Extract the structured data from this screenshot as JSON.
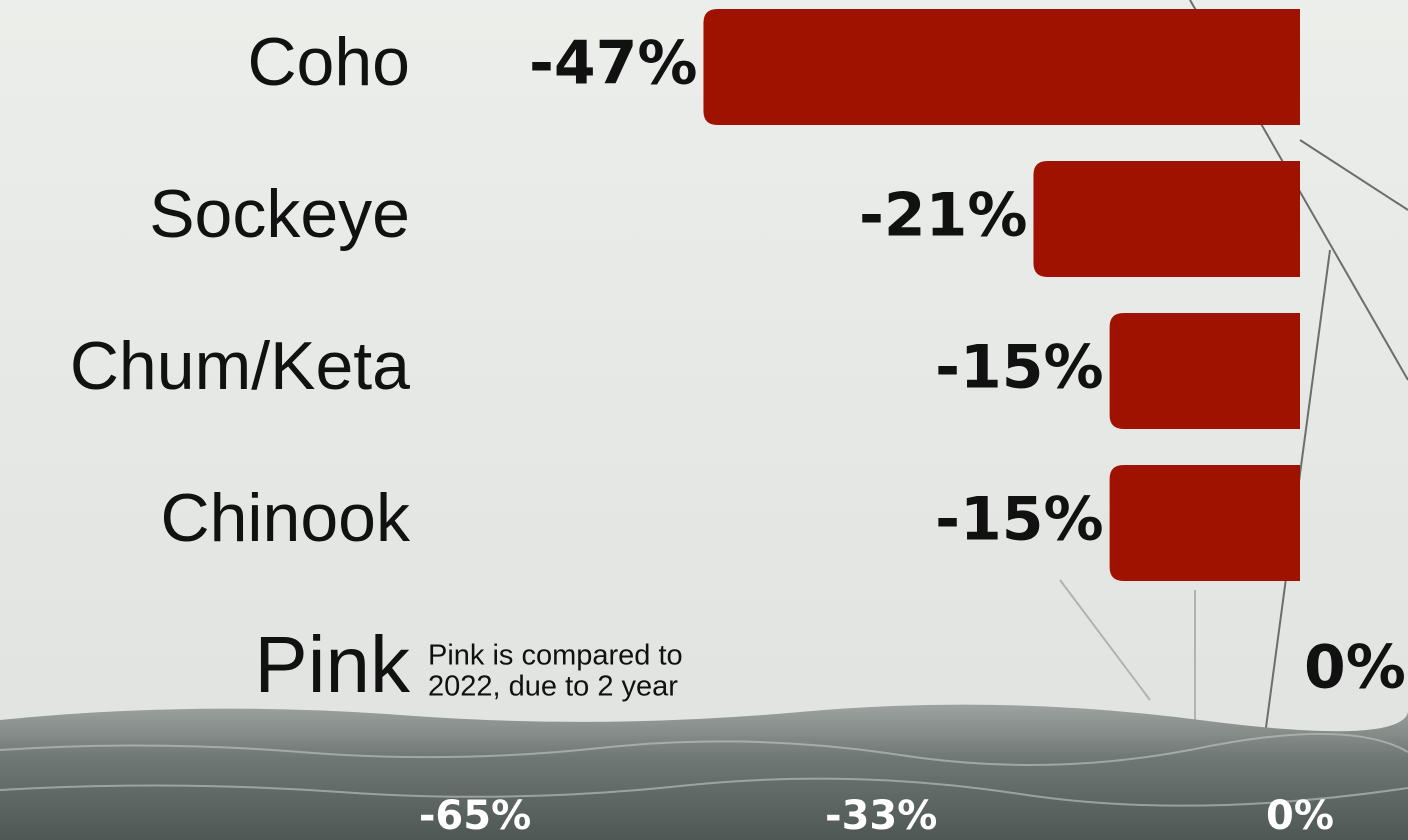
{
  "chart_data": {
    "type": "bar",
    "orientation": "horizontal",
    "categories": [
      "Coho",
      "Sockeye",
      "Chum/Keta",
      "Chinook",
      "Pink"
    ],
    "values": [
      -47,
      -21,
      -15,
      -15,
      0
    ],
    "value_labels": [
      "-47%",
      "-21%",
      "-15%",
      "-15%",
      "0%"
    ],
    "color": "#a01200",
    "xlim": [
      -65,
      0
    ],
    "xticks": [
      {
        "value": -65,
        "label": "-65%"
      },
      {
        "value": -33,
        "label": "-33%"
      },
      {
        "value": 0,
        "label": "0%"
      }
    ],
    "annotation": [
      "Pink is compared to",
      "2022, due to 2 year"
    ]
  }
}
